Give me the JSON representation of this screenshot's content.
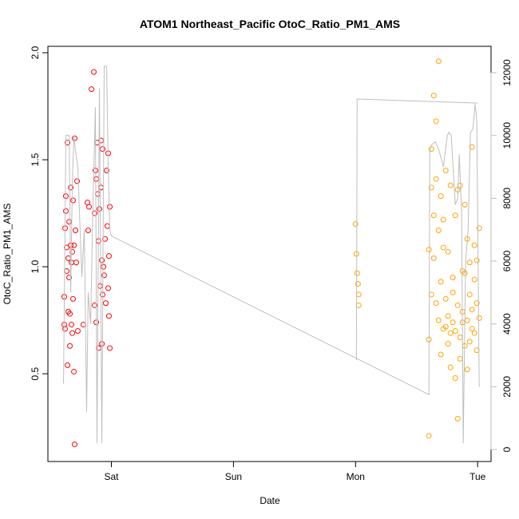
{
  "chart_data": {
    "type": "scatter",
    "title": "ATOM1 Northeast_Pacific OtoC_Ratio_PM1_AMS",
    "xlabel": "Date",
    "ylabel": "OtoC_Ratio_PM1_AMS",
    "xlim": [
      -0.52,
      3.11
    ],
    "xticks": [
      {
        "value": 0,
        "label": "Sat"
      },
      {
        "value": 1,
        "label": "Sun"
      },
      {
        "value": 2,
        "label": "Mon"
      },
      {
        "value": 3,
        "label": "Tue"
      }
    ],
    "ylim": [
      0.09,
      2.03
    ],
    "yticks": [
      0.5,
      {
        "value": 1,
        "label": "1.0"
      },
      1.5,
      {
        "value": 2,
        "label": "2.0"
      }
    ],
    "y2lim": [
      -381,
      12839
    ],
    "y2ticks": [
      0,
      2000,
      4000,
      6000,
      8000,
      10000,
      12000
    ],
    "series": [
      {
        "type": "scatter",
        "color": "#ff0000",
        "x": [
          -0.386,
          -0.386,
          -0.379,
          -0.379,
          -0.373,
          -0.373,
          -0.366,
          -0.366,
          -0.359,
          -0.359,
          -0.353,
          -0.353,
          -0.346,
          -0.346,
          -0.34,
          -0.34,
          -0.333,
          -0.333,
          -0.327,
          -0.327,
          -0.32,
          -0.32,
          -0.314,
          -0.314,
          -0.307,
          -0.307,
          -0.301,
          -0.301,
          -0.294,
          -0.288,
          -0.281,
          -0.275,
          -0.229,
          -0.196,
          -0.19,
          -0.183,
          -0.163,
          -0.144,
          -0.137,
          -0.137,
          -0.131,
          -0.124,
          -0.124,
          -0.118,
          -0.111,
          -0.105,
          -0.105,
          -0.098,
          -0.092,
          -0.085,
          -0.085,
          -0.078,
          -0.078,
          -0.072,
          -0.072,
          -0.065,
          -0.059,
          -0.052,
          -0.046,
          -0.039,
          -0.033,
          -0.026,
          -0.026,
          -0.02,
          -0.02,
          -0.013,
          -0.013
        ],
        "values": [
          0.86,
          0.73,
          0.71,
          1.18,
          1.26,
          1.33,
          1.09,
          0.98,
          1.58,
          0.54,
          0.79,
          1.04,
          0.95,
          1.21,
          0.78,
          0.63,
          1.37,
          1.1,
          1.02,
          0.73,
          1.07,
          0.69,
          1.31,
          0.85,
          0.51,
          1.1,
          0.17,
          1.6,
          1.17,
          1.02,
          1.4,
          0.7,
          0.73,
          1.3,
          1.17,
          1.28,
          1.83,
          1.91,
          1.25,
          0.82,
          1.45,
          1.41,
          0.74,
          1.58,
          1.34,
          1.12,
          0.62,
          1.27,
          0.91,
          1.59,
          1.37,
          1.03,
          0.64,
          1.55,
          0.87,
          1.0,
          0.96,
          1.13,
          0.83,
          1.45,
          1.19,
          0.9,
          1.53,
          1.05,
          0.77,
          1.28,
          0.62
        ]
      },
      {
        "type": "scatter",
        "color": "#ffa500",
        "x": [
          2.0,
          2.007,
          2.013,
          2.02,
          2.026,
          2.026,
          2.601,
          2.601,
          2.601,
          2.621,
          2.621,
          2.621,
          2.641,
          2.641,
          2.641,
          2.66,
          2.66,
          2.66,
          2.68,
          2.68,
          2.68,
          2.699,
          2.699,
          2.699,
          2.719,
          2.719,
          2.719,
          2.739,
          2.739,
          2.739,
          2.758,
          2.758,
          2.758,
          2.778,
          2.778,
          2.778,
          2.797,
          2.797,
          2.797,
          2.817,
          2.817,
          2.817,
          2.837,
          2.837,
          2.837,
          2.856,
          2.856,
          2.856,
          2.876,
          2.876,
          2.876,
          2.895,
          2.895,
          2.895,
          2.915,
          2.915,
          2.915,
          2.935,
          2.935,
          2.935,
          2.954,
          2.954,
          2.954,
          2.974,
          2.974,
          2.974,
          2.993,
          2.993,
          2.993,
          3.013,
          3.013
        ],
        "values": [
          1.2,
          1.06,
          0.97,
          0.92,
          0.87,
          0.82,
          0.66,
          0.21,
          1.08,
          1.55,
          1.37,
          0.87,
          1.8,
          1.24,
          1.04,
          1.68,
          1.41,
          0.83,
          1.96,
          1.17,
          0.75,
          1.33,
          0.93,
          0.59,
          1.09,
          0.71,
          1.22,
          0.85,
          0.72,
          1.45,
          0.64,
          0.77,
          1.07,
          0.69,
          1.38,
          0.53,
          0.74,
          0.95,
          0.88,
          0.7,
          0.48,
          1.24,
          0.29,
          0.82,
          1.36,
          1.38,
          0.67,
          0.57,
          0.98,
          0.74,
          0.79,
          1.29,
          0.97,
          0.63,
          1.13,
          0.75,
          0.52,
          0.87,
          0.65,
          1.02,
          1.56,
          0.8,
          0.71,
          1.1,
          0.69,
          0.94,
          0.83,
          1.03,
          0.61,
          0.76,
          1.18
        ]
      },
      {
        "type": "line",
        "axis": "y2",
        "color": "#bebebe",
        "x": [
          -0.392,
          -0.373,
          -0.346,
          -0.333,
          -0.32,
          -0.307,
          -0.294,
          -0.275,
          -0.261,
          -0.242,
          -0.222,
          -0.203,
          -0.19,
          -0.17,
          -0.15,
          -0.131,
          -0.118,
          -0.098,
          -0.078,
          -0.059,
          -0.039,
          -0.026,
          -0.013,
          0.0,
          2.601,
          2.608,
          2.621,
          2.654,
          2.686,
          2.719,
          2.752,
          2.765,
          2.784,
          2.817,
          2.837,
          2.85,
          2.869,
          2.882,
          2.902,
          2.922,
          2.941,
          2.961,
          2.98,
          2.993,
          3.013,
          null,
          2.007,
          2.013,
          3.0
        ],
        "values": [
          2100,
          10000,
          10000,
          5000,
          8500,
          10000,
          9500,
          9000,
          7500,
          5500,
          7000,
          1200,
          5000,
          4000,
          8000,
          10900,
          200,
          11500,
          200,
          12200,
          12200,
          9000,
          7000,
          6800,
          1750,
          9500,
          9700,
          9800,
          9500,
          9000,
          10000,
          10100,
          10000,
          7800,
          8000,
          9400,
          7500,
          200,
          6000,
          7000,
          10100,
          10200,
          11000,
          10500,
          2000,
          null,
          2850,
          11160,
          11030
        ]
      }
    ]
  }
}
